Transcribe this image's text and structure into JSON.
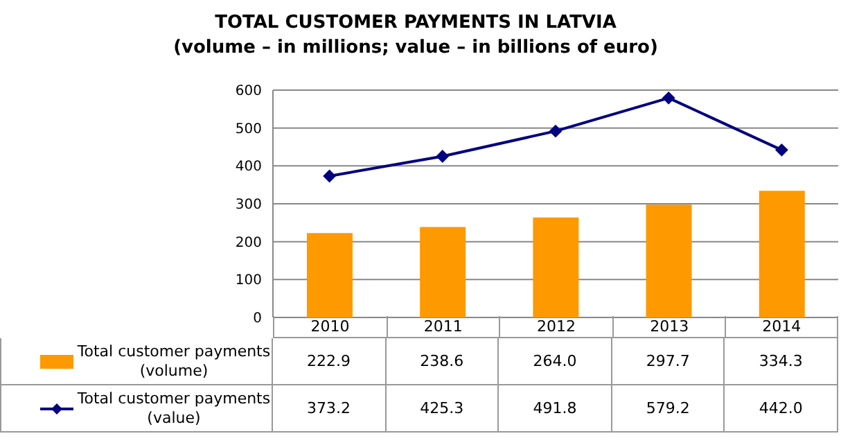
{
  "chart_data": {
    "type": "bar",
    "title": "TOTAL CUSTOMER PAYMENTS IN LATVIA",
    "subtitle": "(volume – in millions; value – in billions of euro)",
    "categories": [
      "2010",
      "2011",
      "2012",
      "2013",
      "2014"
    ],
    "series": [
      {
        "name": "Total customer payments (volume)",
        "color": "#ff9900",
        "values": [
          222.9,
          238.6,
          264.0,
          297.7,
          334.3
        ],
        "value_labels": [
          "222.9",
          "238.6",
          "264.0",
          "297.7",
          "334.3"
        ]
      },
      {
        "name": "Total customer payments (value)",
        "type": "line",
        "color": "#000080",
        "marker": "diamond",
        "values": [
          373.2,
          425.3,
          491.8,
          579.2,
          442.0
        ],
        "value_labels": [
          "373.2",
          "425.3",
          "491.8",
          "579.2",
          "442.0"
        ]
      }
    ],
    "ylim": [
      0,
      600
    ],
    "yticks": [
      0,
      100,
      200,
      300,
      400,
      500,
      600
    ],
    "grid": "y",
    "legend": "bottom left"
  }
}
